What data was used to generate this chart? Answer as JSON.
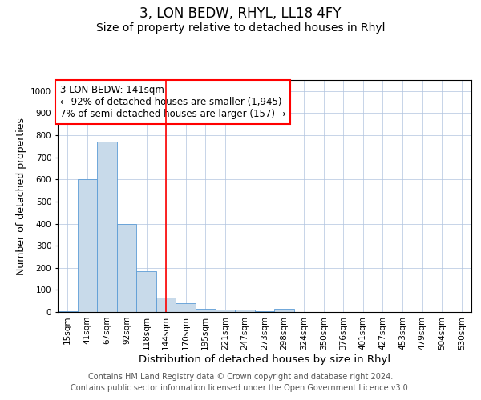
{
  "title": "3, LON BEDW, RHYL, LL18 4FY",
  "subtitle": "Size of property relative to detached houses in Rhyl",
  "xlabel": "Distribution of detached houses by size in Rhyl",
  "ylabel": "Number of detached properties",
  "categories": [
    "15sqm",
    "41sqm",
    "67sqm",
    "92sqm",
    "118sqm",
    "144sqm",
    "170sqm",
    "195sqm",
    "221sqm",
    "247sqm",
    "273sqm",
    "298sqm",
    "324sqm",
    "350sqm",
    "376sqm",
    "401sqm",
    "427sqm",
    "453sqm",
    "479sqm",
    "504sqm",
    "530sqm"
  ],
  "values": [
    2,
    600,
    770,
    400,
    185,
    65,
    40,
    15,
    10,
    10,
    5,
    15,
    0,
    0,
    0,
    0,
    0,
    0,
    0,
    0,
    0
  ],
  "bar_color": "#c8daea",
  "bar_edge_color": "#5b9bd5",
  "grid_color": "#b0c4de",
  "background_color": "#ffffff",
  "annotation_text": "3 LON BEDW: 141sqm\n← 92% of detached houses are smaller (1,945)\n7% of semi-detached houses are larger (157) →",
  "redline_index": 5,
  "ylim": [
    0,
    1050
  ],
  "yticks": [
    0,
    100,
    200,
    300,
    400,
    500,
    600,
    700,
    800,
    900,
    1000
  ],
  "footer_text": "Contains HM Land Registry data © Crown copyright and database right 2024.\nContains public sector information licensed under the Open Government Licence v3.0.",
  "title_fontsize": 12,
  "subtitle_fontsize": 10,
  "xlabel_fontsize": 9.5,
  "ylabel_fontsize": 9,
  "tick_fontsize": 7.5,
  "annotation_fontsize": 8.5,
  "footer_fontsize": 7
}
